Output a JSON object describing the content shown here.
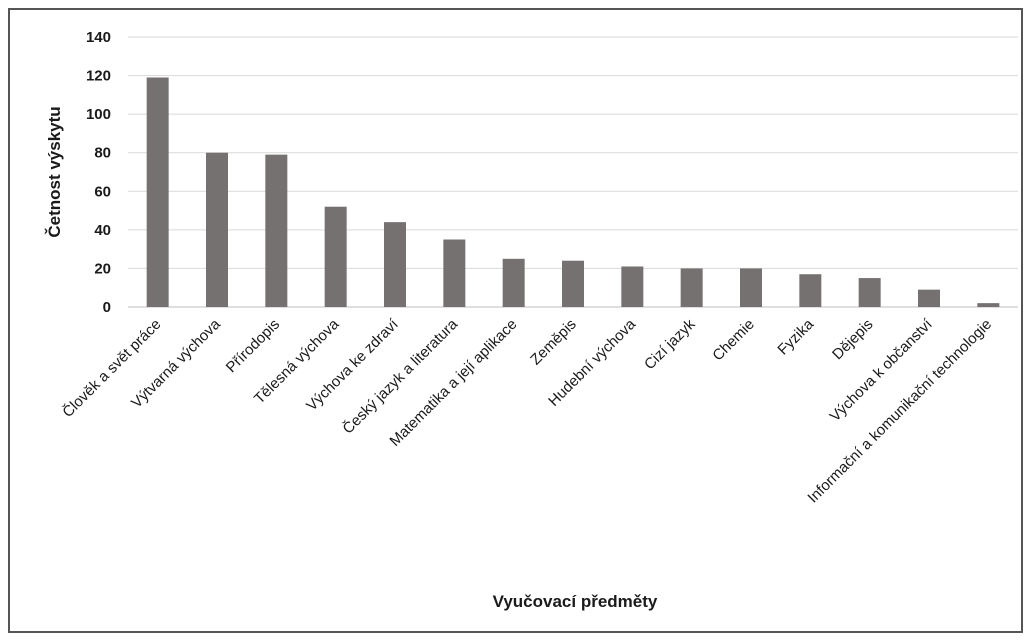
{
  "chart_data": {
    "type": "bar",
    "categories": [
      "Člověk a svět práce",
      "Výtvarná výchova",
      "Přírodopis",
      "Tělesná výchova",
      "Výchova ke zdraví",
      "Český jazyk a literatura",
      "Matematika a její aplikace",
      "Zeměpis",
      "Hudební výchova",
      "Cizí jazyk",
      "Chemie",
      "Fyzika",
      "Dějepis",
      "Výchova k občanství",
      "Informační a komunikační technologie"
    ],
    "values": [
      119,
      80,
      79,
      52,
      44,
      35,
      25,
      24,
      21,
      20,
      20,
      17,
      15,
      9,
      2
    ],
    "title": "",
    "xlabel": "Vyučovací předměty",
    "ylabel": "Četnost výskytu",
    "ylim": [
      0,
      140
    ],
    "yticks": [
      "0",
      "20",
      "40",
      "60",
      "80",
      "100",
      "120",
      "140"
    ],
    "bar_color": "#767171",
    "grid": true,
    "legend": "none"
  }
}
